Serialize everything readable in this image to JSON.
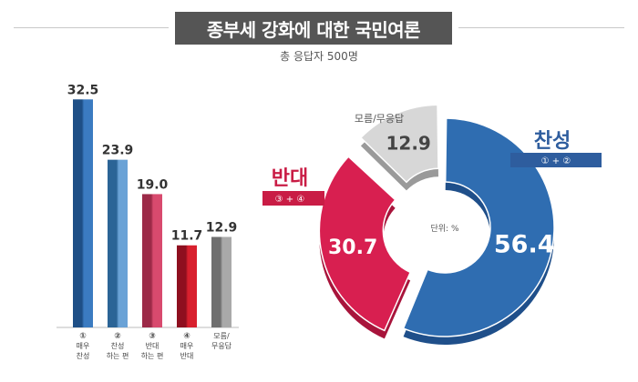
{
  "title": "종부세 강화에 대한 국민여론",
  "subtitle": "총 응답자 500명",
  "colors": {
    "blue": "#2f6db1",
    "blue_dark": "#1f4f8a",
    "red": "#d81f50",
    "red_dark": "#a8143b",
    "gray": "#d7d7d7",
    "gray_dark": "#9a9a9a",
    "group_blue": "#2e5d9e",
    "group_red": "#c91c45"
  },
  "chart_data": [
    {
      "type": "bar",
      "categories": [
        {
          "num": "①",
          "lines": [
            "매우",
            "찬성"
          ]
        },
        {
          "num": "②",
          "lines": [
            "찬성",
            "하는 편"
          ]
        },
        {
          "num": "③",
          "lines": [
            "반대",
            "하는 편"
          ]
        },
        {
          "num": "④",
          "lines": [
            "매우",
            "반대"
          ]
        },
        {
          "num": "",
          "lines": [
            "모름/",
            "무응답"
          ]
        }
      ],
      "values": [
        32.5,
        23.9,
        19.0,
        11.7,
        12.9
      ],
      "value_labels": [
        "32.5",
        "23.9",
        "19.0",
        "11.7",
        "12.9"
      ],
      "bar_colors": [
        [
          "#1e4f86",
          "#3b7bc1"
        ],
        [
          "#2b6496",
          "#6aa2d6"
        ],
        [
          "#9c2a48",
          "#d84a6e"
        ],
        [
          "#8e0f1f",
          "#d8202e"
        ],
        [
          "#6f6f6f",
          "#a9a9a9"
        ]
      ],
      "ylim": [
        0,
        35
      ]
    },
    {
      "type": "pie",
      "style": "donut",
      "unit": "단위: %",
      "slices": [
        {
          "label": "찬성",
          "value": 56.4,
          "value_label": "56.4",
          "formula": "① + ②"
        },
        {
          "label": "반대",
          "value": 30.7,
          "value_label": "30.7",
          "formula": "③ + ④"
        },
        {
          "label": "모름/무응답",
          "value": 12.9,
          "value_label": "12.9"
        }
      ]
    }
  ]
}
